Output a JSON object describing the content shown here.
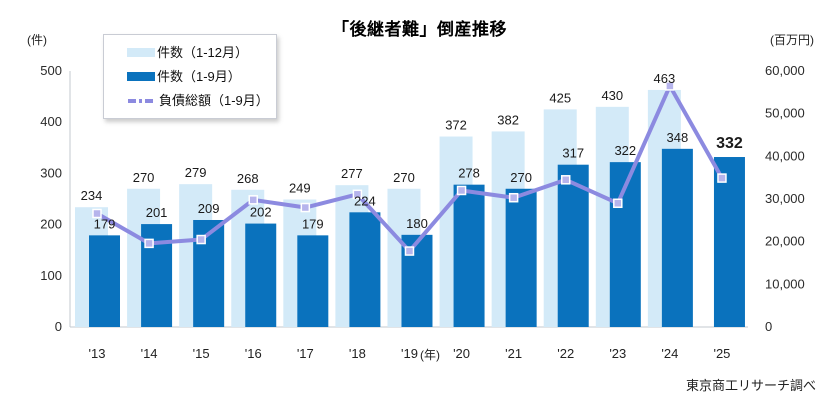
{
  "chart_data": {
    "type": "combo_bar_line",
    "title": "「後継者難」倒産推移",
    "categories": [
      "'13",
      "'14",
      "'15",
      "'16",
      "'17",
      "'18",
      "'19",
      "'20",
      "'21",
      "'22",
      "'23",
      "'24",
      "'25"
    ],
    "x_axis_unit": "(年)",
    "left_axis": {
      "label": "(件)",
      "range": [
        0,
        500
      ],
      "ticks": [
        0,
        100,
        200,
        300,
        400,
        500
      ]
    },
    "right_axis": {
      "label": "(百万円)",
      "range": [
        0,
        60000
      ],
      "ticks": [
        0,
        10000,
        20000,
        30000,
        40000,
        50000,
        60000
      ]
    },
    "grid": false,
    "legend_position": "top-left",
    "series": [
      {
        "name": "件数（1-12月）",
        "type": "bar",
        "axis": "left",
        "color": "#d3eaf8",
        "values": [
          234,
          270,
          279,
          268,
          249,
          277,
          270,
          372,
          382,
          425,
          430,
          463,
          null
        ]
      },
      {
        "name": "件数（1-9月）",
        "type": "bar",
        "axis": "left",
        "color": "#0a72bd",
        "values": [
          179,
          201,
          209,
          202,
          179,
          224,
          180,
          278,
          270,
          317,
          322,
          348,
          332
        ]
      },
      {
        "name": "負債総額（1-9月）",
        "type": "line",
        "axis": "right",
        "color": "#8c8ae0",
        "marker": "square",
        "values_are_estimates": true,
        "values": [
          26600,
          19600,
          20500,
          29800,
          28000,
          31100,
          17800,
          32000,
          30300,
          34500,
          29000,
          56500,
          34900
        ]
      }
    ],
    "bar_label_style": {
      "last_part_label_bold": true
    },
    "source": "東京商工リサーチ調べ"
  }
}
